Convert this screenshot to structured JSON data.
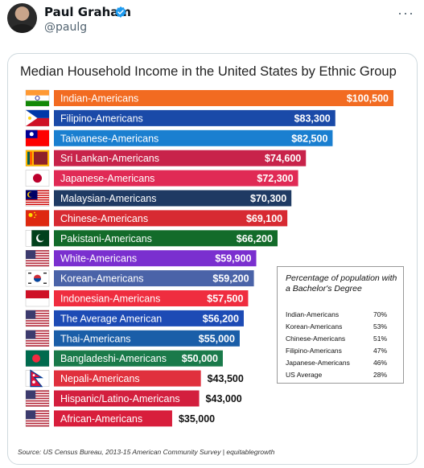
{
  "post": {
    "author_name": "Paul Graham",
    "handle": "@paulg",
    "more_icon": "more-horizontal-icon",
    "verified_icon": "verified-badge-icon"
  },
  "chart_data": {
    "type": "bar",
    "orientation": "horizontal",
    "title": "Median Household Income in the United States  by Ethnic Group",
    "source": "Source: US Census Bureau, 2013-15 American Community Survey | equitablegrowth",
    "categories": [
      "Indian-Americans",
      "Filipino-Americans",
      "Taiwanese-Americans",
      "Sri Lankan-Americans",
      "Japanese-Americans",
      "Malaysian-Americans",
      "Chinese-Americans",
      "Pakistani-Americans",
      "White-Americans",
      "Korean-Americans",
      "Indonesian-Americans",
      "The Average American",
      "Thai-Americans",
      "Bangladeshi-Americans",
      "Nepali-Americans",
      "Hispanic/Latino-Americans",
      "African-Americans"
    ],
    "values": [
      100500,
      83300,
      82500,
      74600,
      72300,
      70300,
      69100,
      66200,
      59900,
      59200,
      57500,
      56200,
      55000,
      50000,
      43500,
      43000,
      35000
    ],
    "value_labels": [
      "$100,500",
      "$83,300",
      "$82,500",
      "$74,600",
      "$72,300",
      "$70,300",
      "$69,100",
      "$66,200",
      "$59,900",
      "$59,200",
      "$57,500",
      "$56,200",
      "$55,000",
      "$50,000",
      "$43,500",
      "$43,000",
      "$35,000"
    ],
    "bar_colors": [
      "#f26b21",
      "#1a4aa8",
      "#1a7fd0",
      "#c8234a",
      "#e02a55",
      "#1f3a63",
      "#d72a32",
      "#136b2a",
      "#7a2fcf",
      "#4a63a8",
      "#ef2d3f",
      "#1d4bb5",
      "#1a5ea8",
      "#1a7a4a",
      "#e0303d",
      "#d31f3e",
      "#d81e3c"
    ],
    "flag_icons": [
      "india-flag-icon",
      "philippines-flag-icon",
      "taiwan-flag-icon",
      "sri-lanka-flag-icon",
      "japan-flag-icon",
      "malaysia-flag-icon",
      "china-flag-icon",
      "pakistan-flag-icon",
      "usa-flag-icon",
      "south-korea-flag-icon",
      "indonesia-flag-icon",
      "usa-flag-icon",
      "usa-flag-icon",
      "bangladesh-flag-icon",
      "nepal-flag-icon",
      "usa-flag-icon",
      "usa-flag-icon"
    ],
    "xlim": [
      0,
      100500
    ],
    "grid": false,
    "legend": "none"
  },
  "inset": {
    "title": "Percentage of population with a Bachelor's Degree",
    "rows": [
      {
        "label": "Indian-Americans",
        "value": "70%"
      },
      {
        "label": "Korean-Americans",
        "value": "53%"
      },
      {
        "label": "Chinese-Americans",
        "value": "51%"
      },
      {
        "label": "Filipino-Americans",
        "value": "47%"
      },
      {
        "label": "Japanese-Americans",
        "value": "46%"
      },
      {
        "label": "US Average",
        "value": "28%"
      }
    ]
  }
}
